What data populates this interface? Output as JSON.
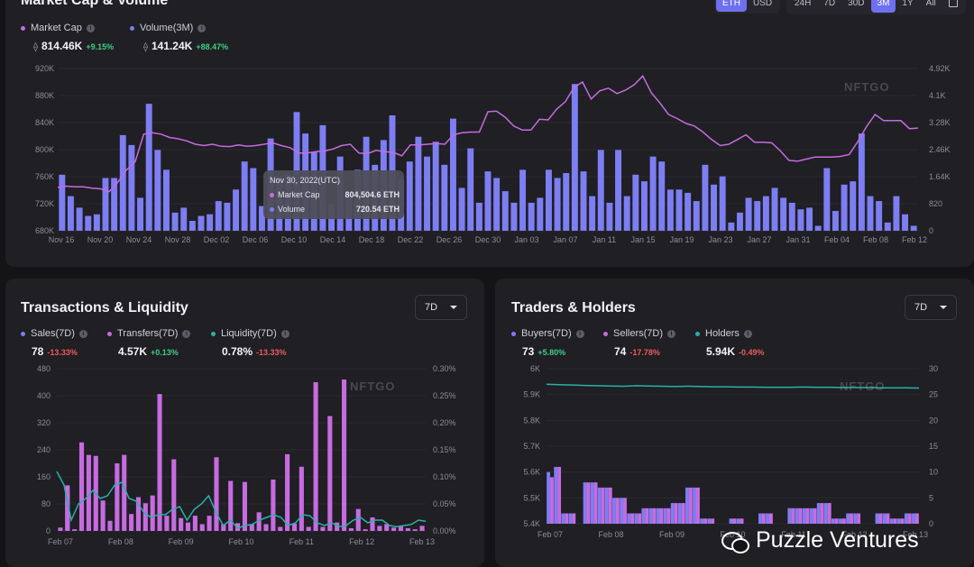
{
  "top": {
    "title": "Market Cap & Volume",
    "currency_buttons": [
      {
        "label": "ETH",
        "active": true
      },
      {
        "label": "USD",
        "active": false
      }
    ],
    "range_buttons": [
      {
        "label": "24H",
        "active": false
      },
      {
        "label": "7D",
        "active": false
      },
      {
        "label": "30D",
        "active": false
      },
      {
        "label": "3M",
        "active": true
      },
      {
        "label": "1Y",
        "active": false
      },
      {
        "label": "All",
        "active": false
      }
    ],
    "legend": [
      {
        "name": "Market Cap",
        "color": "#c76be0",
        "value": "814.46K",
        "change": "+9.15%",
        "dir": "up"
      },
      {
        "name": "Volume(3M)",
        "color": "#7d7ef2",
        "value": "141.24K",
        "change": "+88.47%",
        "dir": "up"
      }
    ],
    "watermark": "NFTGO",
    "tooltip": {
      "title": "Nov 30, 2022(UTC)",
      "rows": [
        {
          "label": "Market Cap",
          "value": "804,504.6 ETH",
          "color": "#c76be0"
        },
        {
          "label": "Volume",
          "value": "720.54 ETH",
          "color": "#7d7ef2"
        }
      ]
    }
  },
  "chart_data": [
    {
      "id": "market-cap-volume",
      "type": "bar",
      "title": "Market Cap & Volume",
      "x_labels": [
        "Nov 16",
        "Nov 20",
        "Nov 24",
        "Nov 28",
        "Dec 02",
        "Dec 06",
        "Dec 10",
        "Dec 14",
        "Dec 18",
        "Dec 22",
        "Dec 26",
        "Dec 30",
        "Jan 03",
        "Jan 07",
        "Jan 11",
        "Jan 15",
        "Jan 19",
        "Jan 23",
        "Jan 27",
        "Jan 31",
        "Feb 04",
        "Feb 08",
        "Feb 12"
      ],
      "y_left_ticks": [
        "680K",
        "720K",
        "760K",
        "800K",
        "840K",
        "880K",
        "920K"
      ],
      "y_right_ticks": [
        "0",
        "820",
        "1.64K",
        "2.46K",
        "3.28K",
        "4.1K",
        "4.92K"
      ],
      "ylim_left": [
        680000,
        920000
      ],
      "ylim_right": [
        0,
        4920
      ],
      "series": [
        {
          "name": "Volume",
          "kind": "bar",
          "axis": "right",
          "color": "#7d7ef2",
          "values": [
            1700,
            1050,
            700,
            450,
            500,
            1600,
            1600,
            2900,
            2600,
            1000,
            3850,
            2450,
            1850,
            550,
            700,
            300,
            450,
            500,
            900,
            850,
            1250,
            2100,
            1900,
            750,
            2800,
            1650,
            1700,
            3600,
            2950,
            2400,
            3200,
            800,
            2250,
            1050,
            1850,
            2850,
            2000,
            2750,
            3500,
            1550,
            2100,
            2850,
            2250,
            2700,
            2000,
            3400,
            1300,
            2500,
            850,
            1800,
            1600,
            1200,
            850,
            1850,
            850,
            1000,
            1850,
            1600,
            1750,
            4450,
            1800,
            1050,
            2450,
            850,
            2450,
            1050,
            1700,
            1500,
            2250,
            2100,
            1250,
            1250,
            1150,
            900,
            2000,
            1400,
            1650,
            250,
            550,
            1000,
            900,
            1050,
            1300,
            1000,
            850,
            650,
            700,
            150,
            1900,
            600,
            1400,
            1500,
            2950,
            1050,
            900,
            250,
            1050,
            500,
            150
          ]
        },
        {
          "name": "Market Cap",
          "kind": "line",
          "axis": "left",
          "color": "#c76be0",
          "values": [
            744000,
            746000,
            745000,
            745000,
            743000,
            742000,
            738000,
            752000,
            770000,
            782000,
            823000,
            825000,
            823000,
            818000,
            816000,
            813000,
            808000,
            806000,
            808000,
            805000,
            804500,
            807000,
            805000,
            806000,
            808000,
            810000,
            806000,
            803000,
            795000,
            795000,
            797000,
            798000,
            801000,
            806000,
            808000,
            795000,
            794000,
            799000,
            797000,
            796000,
            791000,
            807000,
            807000,
            808000,
            809000,
            808000,
            822000,
            825000,
            826000,
            826000,
            856000,
            857000,
            848000,
            835000,
            829000,
            829000,
            845000,
            844000,
            860000,
            871000,
            892000,
            900000,
            875000,
            887000,
            891000,
            883000,
            888000,
            896000,
            909000,
            884000,
            869000,
            852000,
            846000,
            839000,
            835000,
            826000,
            815000,
            806000,
            808000,
            815000,
            822000,
            811000,
            811000,
            810000,
            798000,
            784000,
            783000,
            786000,
            789000,
            789000,
            789000,
            790000,
            793000,
            812000,
            834000,
            852000,
            843000,
            843000,
            843000,
            831000,
            832000
          ]
        }
      ]
    },
    {
      "id": "transactions-liquidity",
      "type": "bar",
      "title": "Transactions & Liquidity",
      "x_labels": [
        "Feb 07",
        "Feb 08",
        "Feb 09",
        "Feb 10",
        "Feb 11",
        "Feb 12",
        "Feb 13"
      ],
      "y_left_ticks": [
        "0",
        "80",
        "160",
        "240",
        "320",
        "400",
        "480"
      ],
      "y_right_ticks": [
        "0.00%",
        "0.05%",
        "0.10%",
        "0.15%",
        "0.20%",
        "0.25%",
        "0.30%"
      ],
      "ylim_left": [
        0,
        480
      ],
      "ylim_right": [
        0,
        0.3
      ],
      "series": [
        {
          "name": "Sales",
          "kind": "bar",
          "color": "#7d7ef2",
          "values": [
            0,
            115,
            0,
            0,
            8,
            0,
            0,
            0,
            0,
            0,
            0,
            0,
            0,
            0,
            0,
            0,
            0,
            0,
            0,
            0,
            0,
            0,
            0,
            0,
            0,
            0,
            0,
            0,
            0,
            0,
            0,
            0,
            0,
            0,
            0,
            0,
            0,
            0,
            0,
            0,
            0,
            0,
            0,
            0,
            0,
            0,
            0,
            0,
            0,
            0,
            0,
            0
          ]
        },
        {
          "name": "Transfers",
          "kind": "bar",
          "color": "#c76be0",
          "values": [
            10,
            135,
            5,
            262,
            225,
            222,
            90,
            30,
            200,
            225,
            50,
            100,
            82,
            105,
            405,
            45,
            212,
            38,
            25,
            45,
            20,
            45,
            218,
            20,
            148,
            23,
            145,
            20,
            55,
            20,
            152,
            12,
            227,
            22,
            190,
            12,
            440,
            12,
            340,
            25,
            448,
            8,
            65,
            5,
            40,
            15,
            20,
            10,
            15,
            8,
            5,
            15
          ]
        },
        {
          "name": "Liquidity",
          "kind": "line",
          "color": "#2ab0a8",
          "values": [
            0.11,
            0.085,
            0.02,
            0.05,
            0.06,
            0.075,
            0.06,
            0.065,
            0.085,
            0.09,
            0.06,
            0.055,
            0.035,
            0.025,
            0.03,
            0.03,
            0.04,
            0.045,
            0.02,
            0.04,
            0.05,
            0.065,
            0.035,
            0.01,
            0.02,
            0.005,
            0.01,
            0.012,
            0.02,
            0.025,
            0.03,
            0.025,
            0.01,
            0.015,
            0.03,
            0.028,
            0.015,
            0.01,
            0.015,
            0.008,
            0.01,
            0.02,
            0.025,
            0.015,
            0.02,
            0.02,
            0.01,
            0.008,
            0.01,
            0.012,
            0.02,
            0.018
          ]
        }
      ]
    },
    {
      "id": "traders-holders",
      "type": "bar",
      "title": "Traders & Holders",
      "x_labels": [
        "Feb 07",
        "Feb 08",
        "Feb 09",
        "Feb 10",
        "Feb 11",
        "Feb 12",
        "Feb 13"
      ],
      "y_left_ticks": [
        "5.4K",
        "5.5K",
        "5.6K",
        "5.7K",
        "5.8K",
        "5.9K",
        "6K"
      ],
      "y_right_ticks": [
        "0",
        "5",
        "10",
        "15",
        "20",
        "25",
        "30"
      ],
      "ylim_left": [
        5400,
        6000
      ],
      "ylim_right": [
        0,
        30
      ],
      "series": [
        {
          "name": "Buyers",
          "kind": "bar",
          "color": "#7d7ef2",
          "values": [
            10,
            11,
            2,
            2,
            0,
            8,
            8,
            7,
            7,
            5,
            5,
            2,
            2,
            3,
            3,
            3,
            3,
            4,
            4,
            7,
            7,
            1,
            1,
            0,
            0,
            1,
            1,
            0,
            0,
            2,
            2,
            0,
            0,
            3,
            3,
            3,
            3,
            4,
            4,
            1,
            1,
            2,
            2,
            0,
            0,
            2,
            2,
            1,
            1,
            2,
            2
          ]
        },
        {
          "name": "Sellers",
          "kind": "bar",
          "color": "#c76be0",
          "values": [
            9,
            11,
            2,
            2,
            0,
            8,
            8,
            7,
            7,
            5,
            5,
            2,
            2,
            3,
            3,
            3,
            3,
            4,
            4,
            7,
            7,
            1,
            1,
            0,
            0,
            1,
            1,
            0,
            0,
            2,
            2,
            0,
            0,
            3,
            3,
            3,
            3,
            4,
            4,
            1,
            1,
            2,
            2,
            0,
            0,
            2,
            2,
            1,
            1,
            2,
            2
          ]
        },
        {
          "name": "Holders",
          "kind": "line",
          "color": "#2ab0a8",
          "values": [
            5.94,
            5.938,
            5.937,
            5.935,
            5.934,
            5.933,
            5.932,
            5.934,
            5.933,
            5.932,
            5.931,
            5.932,
            5.931,
            5.93,
            5.93,
            5.929,
            5.929,
            5.928,
            5.928,
            5.928,
            5.929,
            5.928,
            5.928,
            5.927,
            5.927,
            5.927,
            5.926,
            5.926,
            5.926,
            5.925
          ]
        }
      ]
    }
  ],
  "tl": {
    "title": "Transactions & Liquidity",
    "select": "7D",
    "watermark": "NFTGO",
    "legend": [
      {
        "name": "Sales(7D)",
        "color": "#7d7ef2",
        "value": "78",
        "change": "-13.33%",
        "dir": "down"
      },
      {
        "name": "Transfers(7D)",
        "color": "#c76be0",
        "value": "4.57K",
        "change": "+0.13%",
        "dir": "up"
      },
      {
        "name": "Liquidity(7D)",
        "color": "#2ab0a8",
        "value": "0.78%",
        "change": "-13.33%",
        "dir": "down"
      }
    ]
  },
  "tr": {
    "title": "Traders & Holders",
    "select": "7D",
    "watermark": "NFTGO",
    "legend": [
      {
        "name": "Buyers(7D)",
        "color": "#7d7ef2",
        "value": "73",
        "change": "+5.80%",
        "dir": "up"
      },
      {
        "name": "Sellers(7D)",
        "color": "#c76be0",
        "value": "74",
        "change": "-17.78%",
        "dir": "down"
      },
      {
        "name": "Holders",
        "color": "#2ab0a8",
        "value": "5.94K",
        "change": "-0.49%",
        "dir": "down"
      }
    ]
  },
  "watermark_brand": "Puzzle Ventures",
  "info_glyph": "i"
}
